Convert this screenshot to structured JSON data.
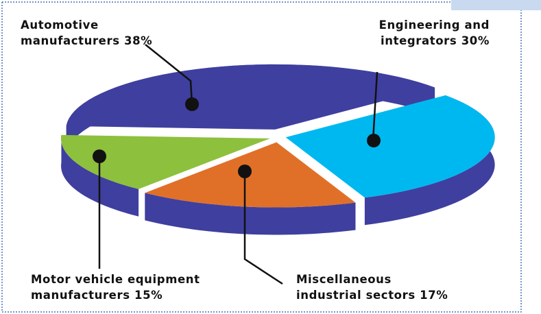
{
  "chart_data": {
    "type": "pie",
    "categories": [
      "Automotive manufacturers",
      "Engineering and integrators",
      "Miscellaneous industrial sectors",
      "Motor vehicle equipment manufacturers"
    ],
    "values": [
      38,
      30,
      17,
      15
    ],
    "value_labels": [
      "38%",
      "30%",
      "17%",
      "15%"
    ],
    "colors": [
      "#3f3f9f",
      "#00b8f0",
      "#e07028",
      "#8dc03c"
    ],
    "side_color": "#3f3f9f"
  }
}
